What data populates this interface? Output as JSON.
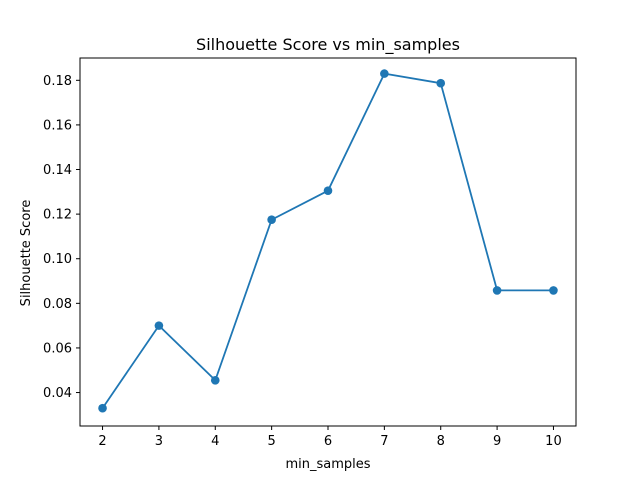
{
  "chart_data": {
    "type": "line",
    "title": "Silhouette Score vs min_samples",
    "xlabel": "min_samples",
    "ylabel": "Silhouette Score",
    "x": [
      2,
      3,
      4,
      5,
      6,
      7,
      8,
      9,
      10
    ],
    "series": [
      {
        "values": [
          0.033,
          0.07,
          0.0455,
          0.1175,
          0.1305,
          0.183,
          0.1787,
          0.0858,
          0.0858
        ]
      }
    ],
    "xticks": [
      "2",
      "3",
      "4",
      "5",
      "6",
      "7",
      "8",
      "9",
      "10"
    ],
    "yticks": [
      "0.04",
      "0.06",
      "0.08",
      "0.10",
      "0.12",
      "0.14",
      "0.16",
      "0.18"
    ],
    "xlim": [
      1.6,
      10.4
    ],
    "ylim": [
      0.025,
      0.19
    ],
    "grid": false,
    "colors": {
      "line": "#1f77b4",
      "marker": "#1f77b4"
    }
  }
}
